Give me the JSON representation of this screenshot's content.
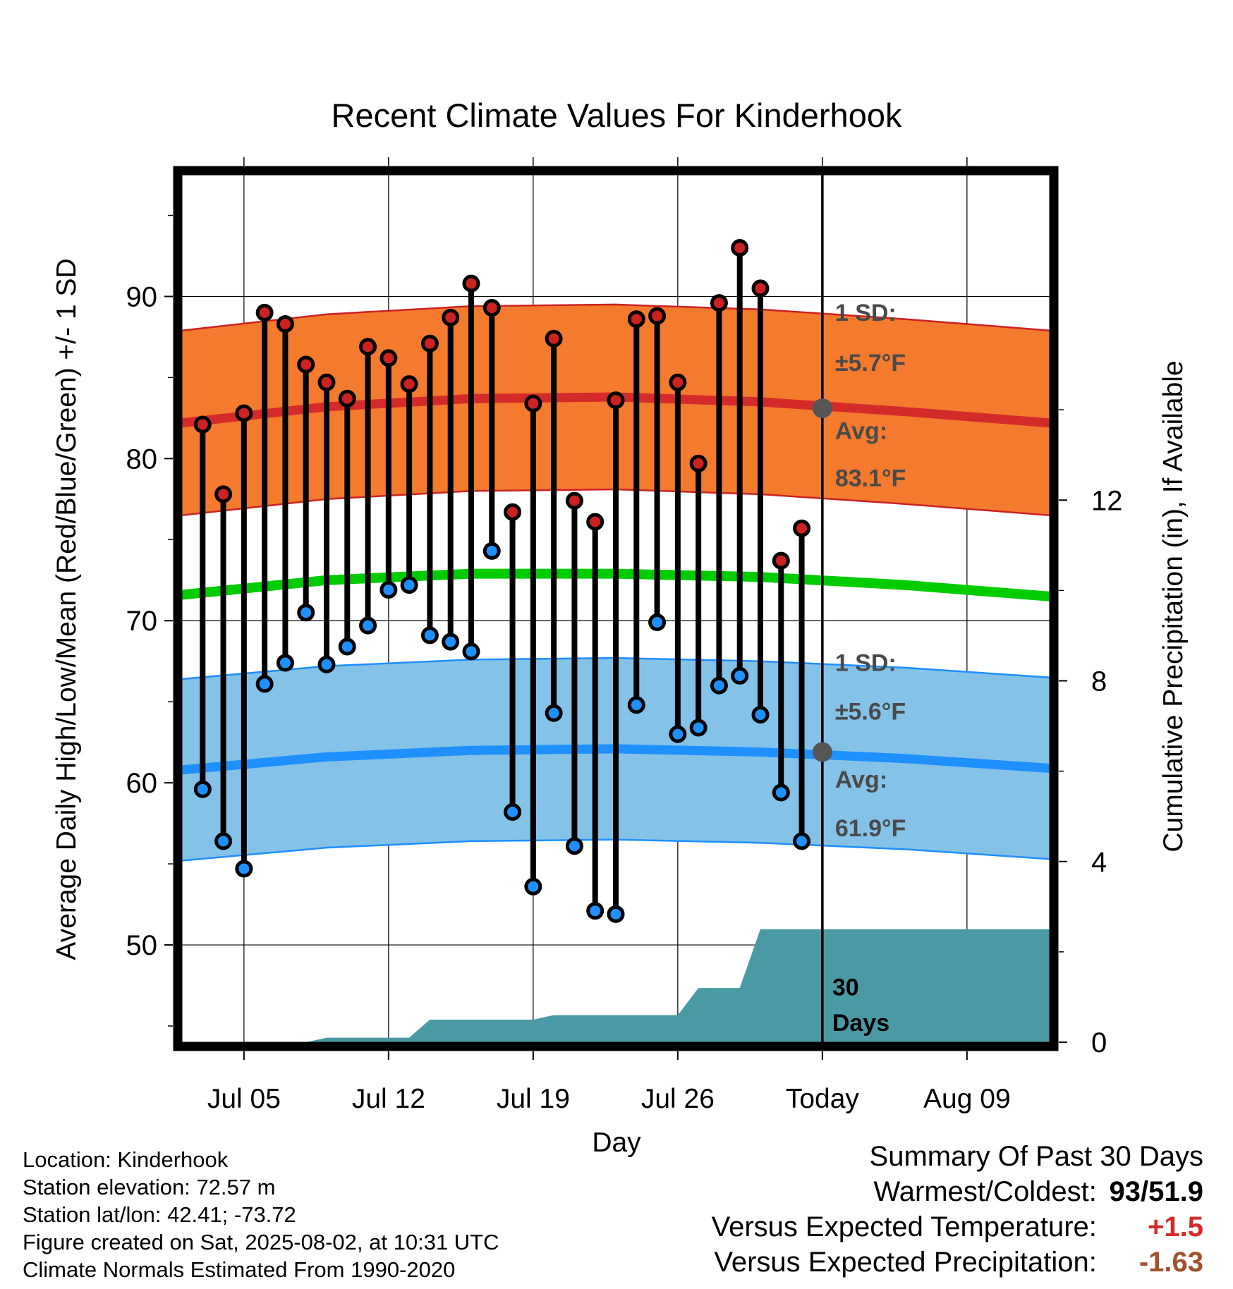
{
  "chart_data": {
    "type": "line",
    "title": "Recent Climate Values For Kinderhook",
    "xlabel": "Day",
    "ylabel": "Average Daily High/Low/Mean (Red/Blue/Green) +/- 1 SD",
    "y2label": "Cumulative Precipitation (in), If Available",
    "x_tick_labels": [
      "Jul 05",
      "Jul 12",
      "Jul 19",
      "Jul 26",
      "Today",
      "Aug 09"
    ],
    "y_ticks": [
      50,
      60,
      70,
      80,
      90
    ],
    "y2_ticks": [
      0,
      4,
      8,
      12
    ],
    "ylim": [
      44,
      97.5
    ],
    "y2lim": [
      0,
      19.2
    ],
    "xlim": [
      "2025-07-02",
      "2025-08-13"
    ],
    "dates": [
      "2025-07-03",
      "2025-07-04",
      "2025-07-05",
      "2025-07-06",
      "2025-07-07",
      "2025-07-08",
      "2025-07-09",
      "2025-07-10",
      "2025-07-11",
      "2025-07-12",
      "2025-07-13",
      "2025-07-14",
      "2025-07-15",
      "2025-07-16",
      "2025-07-17",
      "2025-07-18",
      "2025-07-19",
      "2025-07-20",
      "2025-07-21",
      "2025-07-22",
      "2025-07-23",
      "2025-07-24",
      "2025-07-25",
      "2025-07-26",
      "2025-07-27",
      "2025-07-28",
      "2025-07-29",
      "2025-07-30",
      "2025-07-31",
      "2025-08-01"
    ],
    "series": [
      {
        "name": "High",
        "color": "#cc2222",
        "values": [
          82.1,
          77.8,
          82.8,
          89.0,
          88.3,
          85.8,
          84.7,
          83.7,
          86.9,
          86.2,
          84.6,
          87.1,
          88.7,
          90.8,
          89.3,
          76.7,
          83.4,
          87.4,
          77.4,
          76.1,
          83.6,
          88.6,
          88.8,
          84.7,
          79.7,
          89.6,
          93.0,
          90.5,
          73.7,
          75.7
        ]
      },
      {
        "name": "Low",
        "color": "#1e90ff",
        "values": [
          59.6,
          56.4,
          54.7,
          66.1,
          67.4,
          70.5,
          67.3,
          68.4,
          69.7,
          71.9,
          72.2,
          69.1,
          68.7,
          68.1,
          74.3,
          58.2,
          53.6,
          64.3,
          56.1,
          52.1,
          51.9,
          64.8,
          69.9,
          63.0,
          63.4,
          66.0,
          66.6,
          64.2,
          59.4,
          56.4
        ]
      }
    ],
    "normals": {
      "dates": [
        "2025-07-02",
        "2025-07-09",
        "2025-07-16",
        "2025-07-23",
        "2025-07-30",
        "2025-08-06",
        "2025-08-13"
      ],
      "high_avg": [
        82.2,
        83.2,
        83.7,
        83.8,
        83.5,
        82.9,
        82.2
      ],
      "low_avg": [
        60.8,
        61.6,
        62.0,
        62.1,
        61.9,
        61.5,
        60.9
      ],
      "mean": [
        71.6,
        72.5,
        72.9,
        72.9,
        72.7,
        72.2,
        71.5
      ],
      "high_sd": 5.7,
      "low_sd": 5.6,
      "high_color": "#f47a2e",
      "low_color": "#85c2e8",
      "mean_color": "#00cc00"
    },
    "precip_cumulative": {
      "dates": [
        "2025-07-02",
        "2025-07-08",
        "2025-07-09",
        "2025-07-13",
        "2025-07-14",
        "2025-07-19",
        "2025-07-20",
        "2025-07-26",
        "2025-07-27",
        "2025-07-29",
        "2025-07-30",
        "2025-08-13"
      ],
      "values": [
        0.0,
        0.0,
        0.1,
        0.1,
        0.5,
        0.5,
        0.6,
        0.6,
        1.2,
        1.2,
        2.5,
        2.5
      ],
      "color": "#4a9aa5"
    },
    "annotations": {
      "high_sd_label": "1 SD:",
      "high_sd_value": "±5.7°F",
      "high_avg_label": "Avg:",
      "high_avg_value": "83.1°F",
      "high_avg_point": 83.1,
      "low_sd_label": "1 SD:",
      "low_sd_value": "±5.6°F",
      "low_avg_label": "Avg:",
      "low_avg_value": "61.9°F",
      "low_avg_point": 61.9,
      "window_label_1": "30",
      "window_label_2": "Days",
      "today_date": "2025-08-02"
    },
    "grid": true
  },
  "station": {
    "location": "Location: Kinderhook",
    "elevation": "Station elevation: 72.57 m",
    "latlon": "Station lat/lon: 42.41; -73.72",
    "created": "Figure created on Sat, 2025-08-02, at 10:31 UTC",
    "normals_period": "Climate Normals Estimated From 1990-2020"
  },
  "summary": {
    "heading": "Summary Of Past 30 Days",
    "warm_cold_label": "Warmest/Coldest:",
    "warm_cold_value": "93/51.9",
    "temp_label": "Versus Expected Temperature:",
    "temp_value": "+1.5",
    "temp_color": "#d42a2a",
    "precip_label": "Versus Expected Precipitation:",
    "precip_value": "-1.63",
    "precip_color": "#a0522d"
  }
}
